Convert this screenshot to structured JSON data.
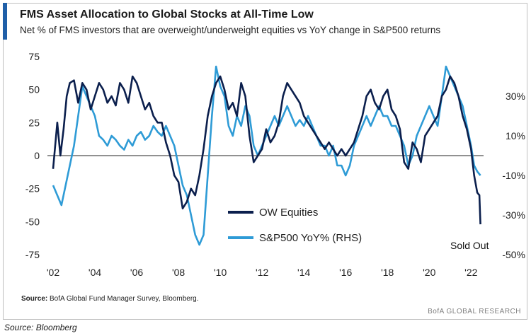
{
  "title": "FMS Asset Allocation to Global Stocks at All-Time Low",
  "subtitle": "Net % of FMS investors that are overweight/underweight equities vs YoY change in S&P500 returns",
  "source_label": "Source:",
  "source_text": "BofA Global Fund Manager Survey, Bloomberg.",
  "brand": "BofA GLOBAL RESEARCH",
  "caption": "Source: Bloomberg",
  "annotation": "Sold Out",
  "chart_data": {
    "type": "line",
    "left_axis": {
      "ylim": [
        -75,
        75
      ],
      "ticks": [
        75,
        50,
        25,
        0,
        -25,
        -50,
        -75
      ],
      "tick_labels": [
        "75",
        "50",
        "25",
        "0",
        "-25",
        "-50",
        "-75"
      ]
    },
    "right_axis": {
      "ylim": [
        -50,
        50
      ],
      "ticks": [
        30,
        10,
        -10,
        -30,
        -50
      ],
      "tick_labels": [
        "30%",
        "10%",
        "-10%",
        "-30%",
        "-50%"
      ]
    },
    "xlim": [
      2002,
      2022.6
    ],
    "x_ticks": [
      2002,
      2004,
      2006,
      2008,
      2010,
      2012,
      2014,
      2016,
      2018,
      2020,
      2022
    ],
    "x_tick_labels": [
      "'02",
      "'04",
      "'06",
      "'08",
      "'10",
      "'12",
      "'14",
      "'16",
      "'18",
      "'20",
      "'22"
    ],
    "legend": {
      "position": "center-right",
      "entries": [
        "OW Equities",
        "S&P500 YoY% (RHS)"
      ]
    },
    "colors": {
      "ow": "#0b1f4d",
      "sp": "#2e9bd6",
      "zero_line": "#6d6d6d",
      "accent": "#1f5fa8"
    },
    "series": [
      {
        "name": "OW Equities",
        "axis": "left",
        "x": [
          2002.0,
          2002.2,
          2002.35,
          2002.5,
          2002.65,
          2002.8,
          2003.0,
          2003.2,
          2003.4,
          2003.6,
          2003.8,
          2004.0,
          2004.2,
          2004.4,
          2004.6,
          2004.8,
          2005.0,
          2005.2,
          2005.4,
          2005.6,
          2005.8,
          2006.0,
          2006.2,
          2006.4,
          2006.6,
          2006.8,
          2007.0,
          2007.2,
          2007.4,
          2007.6,
          2007.8,
          2008.0,
          2008.2,
          2008.4,
          2008.6,
          2008.8,
          2009.0,
          2009.2,
          2009.4,
          2009.6,
          2009.8,
          2010.0,
          2010.2,
          2010.4,
          2010.6,
          2010.8,
          2011.0,
          2011.2,
          2011.4,
          2011.6,
          2011.8,
          2012.0,
          2012.2,
          2012.4,
          2012.6,
          2012.8,
          2013.0,
          2013.2,
          2013.4,
          2013.6,
          2013.8,
          2014.0,
          2014.2,
          2014.4,
          2014.6,
          2014.8,
          2015.0,
          2015.2,
          2015.4,
          2015.6,
          2015.8,
          2016.0,
          2016.2,
          2016.4,
          2016.6,
          2016.8,
          2017.0,
          2017.2,
          2017.4,
          2017.6,
          2017.8,
          2018.0,
          2018.2,
          2018.4,
          2018.6,
          2018.8,
          2019.0,
          2019.2,
          2019.4,
          2019.6,
          2019.8,
          2020.0,
          2020.2,
          2020.4,
          2020.6,
          2020.8,
          2021.0,
          2021.2,
          2021.4,
          2021.6,
          2021.8,
          2022.0,
          2022.15,
          2022.3,
          2022.4,
          2022.45
        ],
        "values": [
          -10,
          25,
          0,
          20,
          45,
          55,
          57,
          40,
          55,
          50,
          35,
          45,
          55,
          50,
          40,
          45,
          38,
          55,
          50,
          40,
          60,
          55,
          45,
          35,
          40,
          30,
          25,
          25,
          10,
          0,
          -15,
          -20,
          -40,
          -35,
          -25,
          -30,
          -15,
          5,
          30,
          45,
          55,
          60,
          50,
          35,
          40,
          30,
          55,
          45,
          15,
          -5,
          0,
          5,
          20,
          10,
          15,
          25,
          45,
          55,
          50,
          45,
          40,
          30,
          25,
          20,
          15,
          10,
          5,
          10,
          5,
          0,
          5,
          0,
          5,
          10,
          20,
          30,
          45,
          50,
          40,
          35,
          45,
          50,
          35,
          30,
          20,
          -5,
          -10,
          10,
          5,
          -5,
          15,
          20,
          25,
          30,
          45,
          50,
          60,
          55,
          45,
          30,
          20,
          5,
          -15,
          -28,
          -30,
          -52
        ]
      },
      {
        "name": "S&P500 YoY% (RHS)",
        "axis": "right",
        "x": [
          2002.0,
          2002.2,
          2002.4,
          2002.6,
          2002.8,
          2003.0,
          2003.2,
          2003.4,
          2003.6,
          2003.8,
          2004.0,
          2004.2,
          2004.4,
          2004.6,
          2004.8,
          2005.0,
          2005.2,
          2005.4,
          2005.6,
          2005.8,
          2006.0,
          2006.2,
          2006.4,
          2006.6,
          2006.8,
          2007.0,
          2007.2,
          2007.4,
          2007.6,
          2007.8,
          2008.0,
          2008.2,
          2008.4,
          2008.6,
          2008.8,
          2009.0,
          2009.2,
          2009.4,
          2009.6,
          2009.8,
          2010.0,
          2010.2,
          2010.4,
          2010.6,
          2010.8,
          2011.0,
          2011.2,
          2011.4,
          2011.6,
          2011.8,
          2012.0,
          2012.2,
          2012.4,
          2012.6,
          2012.8,
          2013.0,
          2013.2,
          2013.4,
          2013.6,
          2013.8,
          2014.0,
          2014.2,
          2014.4,
          2014.6,
          2014.8,
          2015.0,
          2015.2,
          2015.4,
          2015.6,
          2015.8,
          2016.0,
          2016.2,
          2016.4,
          2016.6,
          2016.8,
          2017.0,
          2017.2,
          2017.4,
          2017.6,
          2017.8,
          2018.0,
          2018.2,
          2018.4,
          2018.6,
          2018.8,
          2019.0,
          2019.2,
          2019.4,
          2019.6,
          2019.8,
          2020.0,
          2020.2,
          2020.4,
          2020.6,
          2020.8,
          2021.0,
          2021.2,
          2021.4,
          2021.6,
          2021.8,
          2022.0,
          2022.15,
          2022.3,
          2022.45
        ],
        "values": [
          -15,
          -20,
          -25,
          -15,
          -5,
          5,
          20,
          35,
          30,
          25,
          20,
          10,
          8,
          5,
          10,
          8,
          5,
          3,
          8,
          5,
          10,
          12,
          8,
          10,
          15,
          12,
          10,
          15,
          10,
          5,
          -5,
          -15,
          -20,
          -30,
          -40,
          -45,
          -40,
          -10,
          20,
          45,
          35,
          30,
          15,
          10,
          20,
          15,
          25,
          20,
          5,
          0,
          5,
          10,
          15,
          20,
          15,
          20,
          25,
          20,
          15,
          18,
          15,
          20,
          15,
          10,
          5,
          5,
          0,
          5,
          -5,
          -5,
          -10,
          -5,
          5,
          10,
          15,
          20,
          15,
          20,
          25,
          20,
          20,
          15,
          15,
          10,
          5,
          -5,
          0,
          10,
          15,
          20,
          25,
          20,
          15,
          30,
          45,
          40,
          35,
          30,
          25,
          15,
          5,
          -5,
          -8,
          -10
        ]
      }
    ]
  }
}
